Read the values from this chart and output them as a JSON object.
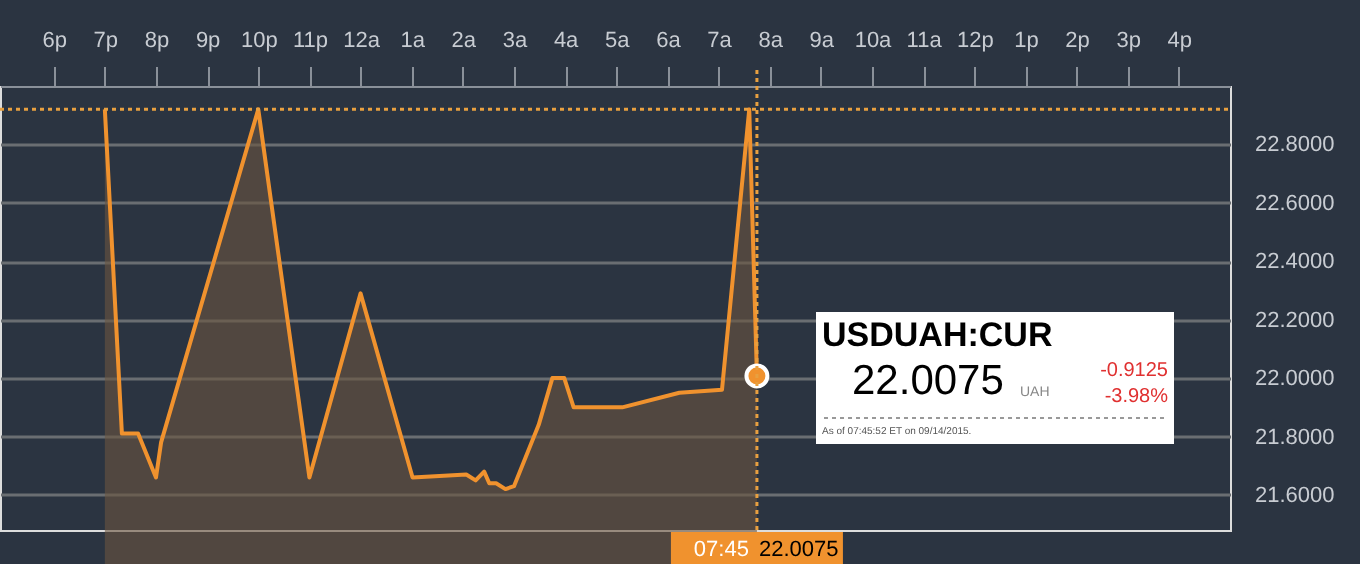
{
  "chart_data": {
    "type": "area",
    "x": [
      "2015-09-13T19:00",
      "2015-09-13T19:20",
      "2015-09-13T19:39",
      "2015-09-13T20:00",
      "2015-09-13T20:06",
      "2015-09-13T22:00",
      "2015-09-13T23:00",
      "2015-09-14T00:00",
      "2015-09-14T01:01",
      "2015-09-14T02:04",
      "2015-09-14T02:15",
      "2015-09-14T02:25",
      "2015-09-14T02:31",
      "2015-09-14T02:39",
      "2015-09-14T02:50",
      "2015-09-14T03:00",
      "2015-09-14T03:29",
      "2015-09-14T03:45",
      "2015-09-14T03:59",
      "2015-09-14T04:10",
      "2015-09-14T05:07",
      "2015-09-14T06:14",
      "2015-09-14T07:04",
      "2015-09-14T07:36",
      "2015-09-14T07:45"
    ],
    "series": [
      {
        "color": "#f0922e",
        "values": [
          22.92,
          21.81,
          21.81,
          21.66,
          21.78,
          22.92,
          21.66,
          22.29,
          21.66,
          21.67,
          21.65,
          21.68,
          21.64,
          21.64,
          21.62,
          21.63,
          21.84,
          22.0,
          22.0,
          21.9,
          21.9,
          21.95,
          21.96,
          22.92,
          22.0075
        ]
      },
      {
        "type": "scatter",
        "color": "#f0922e",
        "x": [
          "2015-09-14T07:45"
        ],
        "values": [
          22.0075
        ]
      }
    ],
    "xlim": [
      "2015-09-13T16:57",
      "2015-09-14T17:00"
    ],
    "xticks": [
      {
        "value": "2015-09-13T18:00",
        "label": "6p"
      },
      {
        "value": "2015-09-13T19:00",
        "label": "7p"
      },
      {
        "value": "2015-09-13T20:00",
        "label": "8p"
      },
      {
        "value": "2015-09-13T21:00",
        "label": "9p"
      },
      {
        "value": "2015-09-13T22:00",
        "label": "10p"
      },
      {
        "value": "2015-09-13T23:00",
        "label": "11p"
      },
      {
        "value": "2015-09-14T00:00",
        "label": "12a"
      },
      {
        "value": "2015-09-14T01:00",
        "label": "1a"
      },
      {
        "value": "2015-09-14T02:00",
        "label": "2a"
      },
      {
        "value": "2015-09-14T03:00",
        "label": "3a"
      },
      {
        "value": "2015-09-14T04:00",
        "label": "4a"
      },
      {
        "value": "2015-09-14T05:00",
        "label": "5a"
      },
      {
        "value": "2015-09-14T06:00",
        "label": "6a"
      },
      {
        "value": "2015-09-14T07:00",
        "label": "7a"
      },
      {
        "value": "2015-09-14T08:00",
        "label": "8a"
      },
      {
        "value": "2015-09-14T09:00",
        "label": "9a"
      },
      {
        "value": "2015-09-14T10:00",
        "label": "10a"
      },
      {
        "value": "2015-09-14T11:00",
        "label": "11a"
      },
      {
        "value": "2015-09-14T12:00",
        "label": "12p"
      },
      {
        "value": "2015-09-14T13:00",
        "label": "1p"
      },
      {
        "value": "2015-09-14T14:00",
        "label": "2p"
      },
      {
        "value": "2015-09-14T15:00",
        "label": "3p"
      },
      {
        "value": "2015-09-14T16:00",
        "label": "4p"
      }
    ],
    "ylim": [
      21.48,
      23.0
    ],
    "yticks": [
      {
        "value": 21.6,
        "label": "21.6000"
      },
      {
        "value": 21.8,
        "label": "21.8000"
      },
      {
        "value": 22.0,
        "label": "22.0000"
      },
      {
        "value": 22.2,
        "label": "22.2000"
      },
      {
        "value": 22.4,
        "label": "22.4000"
      },
      {
        "value": 22.6,
        "label": "22.6000"
      },
      {
        "value": 22.8,
        "label": "22.8000"
      }
    ],
    "grid": "y",
    "line_style": "solid",
    "ref_lines": [
      {
        "axis": "y",
        "value": 22.92,
        "line_style": "dotted",
        "color": "#e8a040"
      },
      {
        "axis": "x",
        "value": "2015-09-14T07:45",
        "label": "07:45",
        "line_style": "dotted",
        "color": "#e8a040"
      }
    ],
    "annotations": [
      "USDUAH:CUR",
      "22.0075",
      "UAH",
      "-0.9125",
      "-3.98%",
      "As of 07:45:52 ET on 09/14/2015.",
      "22.0075"
    ]
  }
}
